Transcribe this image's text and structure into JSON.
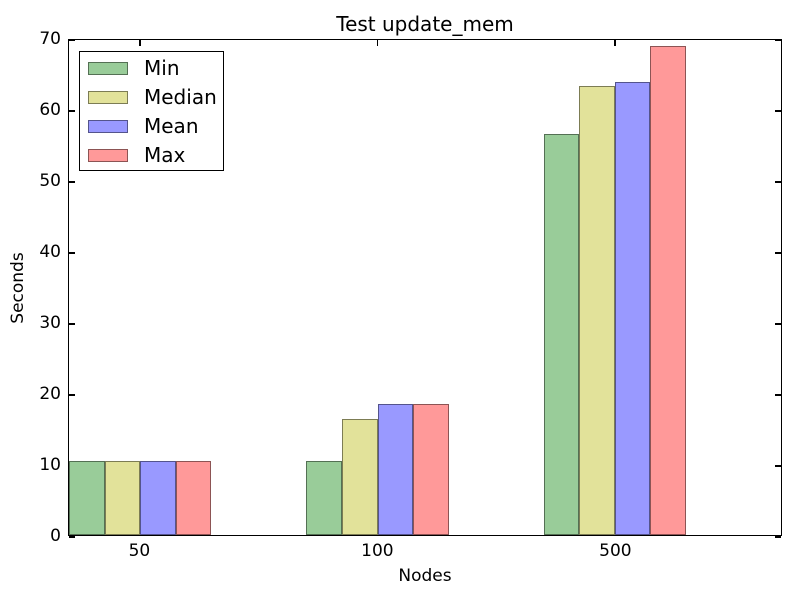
{
  "chart_data": {
    "type": "bar",
    "title": "Test update_mem",
    "xlabel": "Nodes",
    "ylabel": "Seconds",
    "categories": [
      "50",
      "100",
      "500"
    ],
    "series": [
      {
        "name": "Min",
        "color": "#99cc99",
        "values": [
          10.4,
          10.4,
          56.7
        ]
      },
      {
        "name": "Median",
        "color": "#e2e29a",
        "values": [
          10.4,
          16.4,
          63.5
        ]
      },
      {
        "name": "Mean",
        "color": "#9999ff",
        "values": [
          10.4,
          18.5,
          64.0
        ]
      },
      {
        "name": "Max",
        "color": "#ff9999",
        "values": [
          10.4,
          18.5,
          69.1
        ]
      }
    ],
    "ylim": [
      0,
      70
    ],
    "yticks": [
      0,
      10,
      20,
      30,
      40,
      50,
      60,
      70
    ],
    "grid": false,
    "legend_position": "upper left",
    "bar_edge_color": "rgba(0,0,0,0.45)",
    "layout": {
      "bar_width_pct": 5,
      "group_step_pct": 33.3333,
      "group_center_offset_pct": 10
    }
  }
}
